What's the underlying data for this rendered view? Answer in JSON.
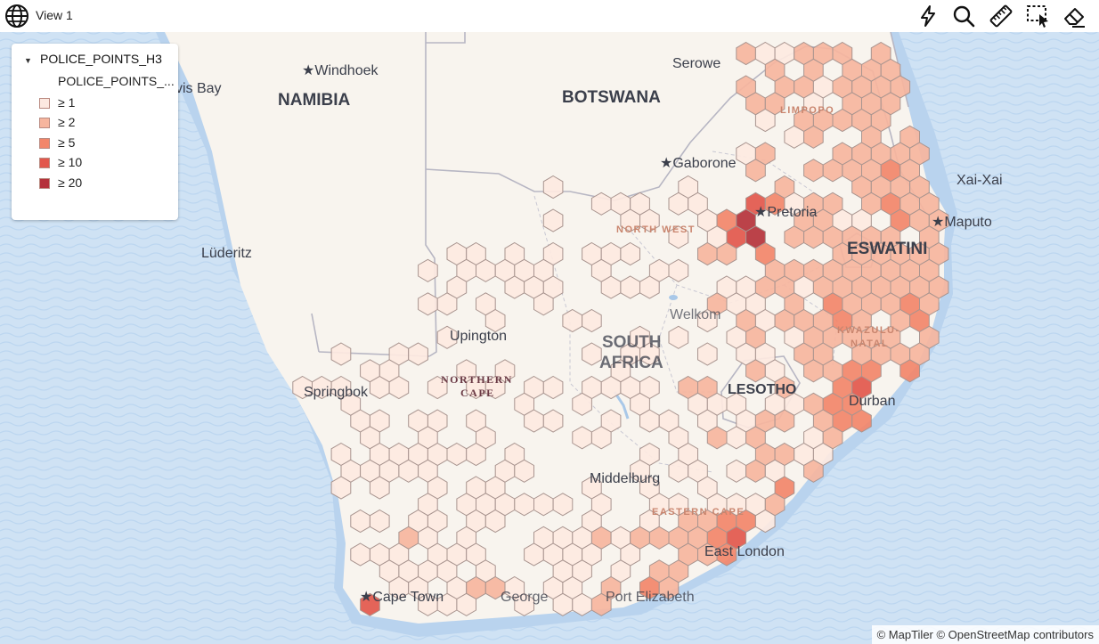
{
  "window": {
    "title": "View 1"
  },
  "toolbar": {
    "tools": [
      "lightning-icon",
      "search-icon",
      "ruler-icon",
      "select-icon",
      "eraser-icon"
    ]
  },
  "legend": {
    "title": "POLICE_POINTS_H3",
    "subtitle": "POLICE_POINTS_...",
    "classes": [
      {
        "label": "≥ 1",
        "min": 1,
        "color": "#fde9e1"
      },
      {
        "label": "≥ 2",
        "min": 2,
        "color": "#f6b59e"
      },
      {
        "label": "≥ 5",
        "min": 5,
        "color": "#f2866a"
      },
      {
        "label": "≥ 10",
        "min": 10,
        "color": "#e2574c"
      },
      {
        "label": "≥ 20",
        "min": 20,
        "color": "#b5323b"
      }
    ]
  },
  "map": {
    "countries": [
      {
        "name": "NAMIBIA"
      },
      {
        "name": "BOTSWANA"
      },
      {
        "name": "SOUTH AFRICA",
        "line1": "SOUTH",
        "line2": "AFRICA"
      },
      {
        "name": "LESOTHO"
      },
      {
        "name": "ESWATINI"
      }
    ],
    "provinces": [
      {
        "name": "NORTHERN CAPE",
        "line1": "NORTHERN",
        "line2": "CAPE"
      },
      {
        "name": "LIMPOPO"
      },
      {
        "name": "NORTH WEST"
      },
      {
        "name": "KWAZULU-NATAL",
        "line1": "KWAZULU-",
        "line2": "NATAL"
      },
      {
        "name": "EASTERN CAPE"
      }
    ],
    "cities": [
      {
        "name": "Windhoek",
        "capital": true
      },
      {
        "name": "Walvis Bay"
      },
      {
        "name": "Serowe"
      },
      {
        "name": "Gaborone",
        "capital": true
      },
      {
        "name": "Xai-Xai"
      },
      {
        "name": "Maputo",
        "capital": true
      },
      {
        "name": "Pretoria",
        "capital": true
      },
      {
        "name": "Lüderitz"
      },
      {
        "name": "Upington"
      },
      {
        "name": "Springbok"
      },
      {
        "name": "Welkom"
      },
      {
        "name": "Durban"
      },
      {
        "name": "Middelburg"
      },
      {
        "name": "East London"
      },
      {
        "name": "Port Elizabeth"
      },
      {
        "name": "George"
      },
      {
        "name": "Cape Town",
        "capital": true
      }
    ]
  },
  "attribution": {
    "text": "© MapTiler   © OpenStreetMap contributors"
  }
}
